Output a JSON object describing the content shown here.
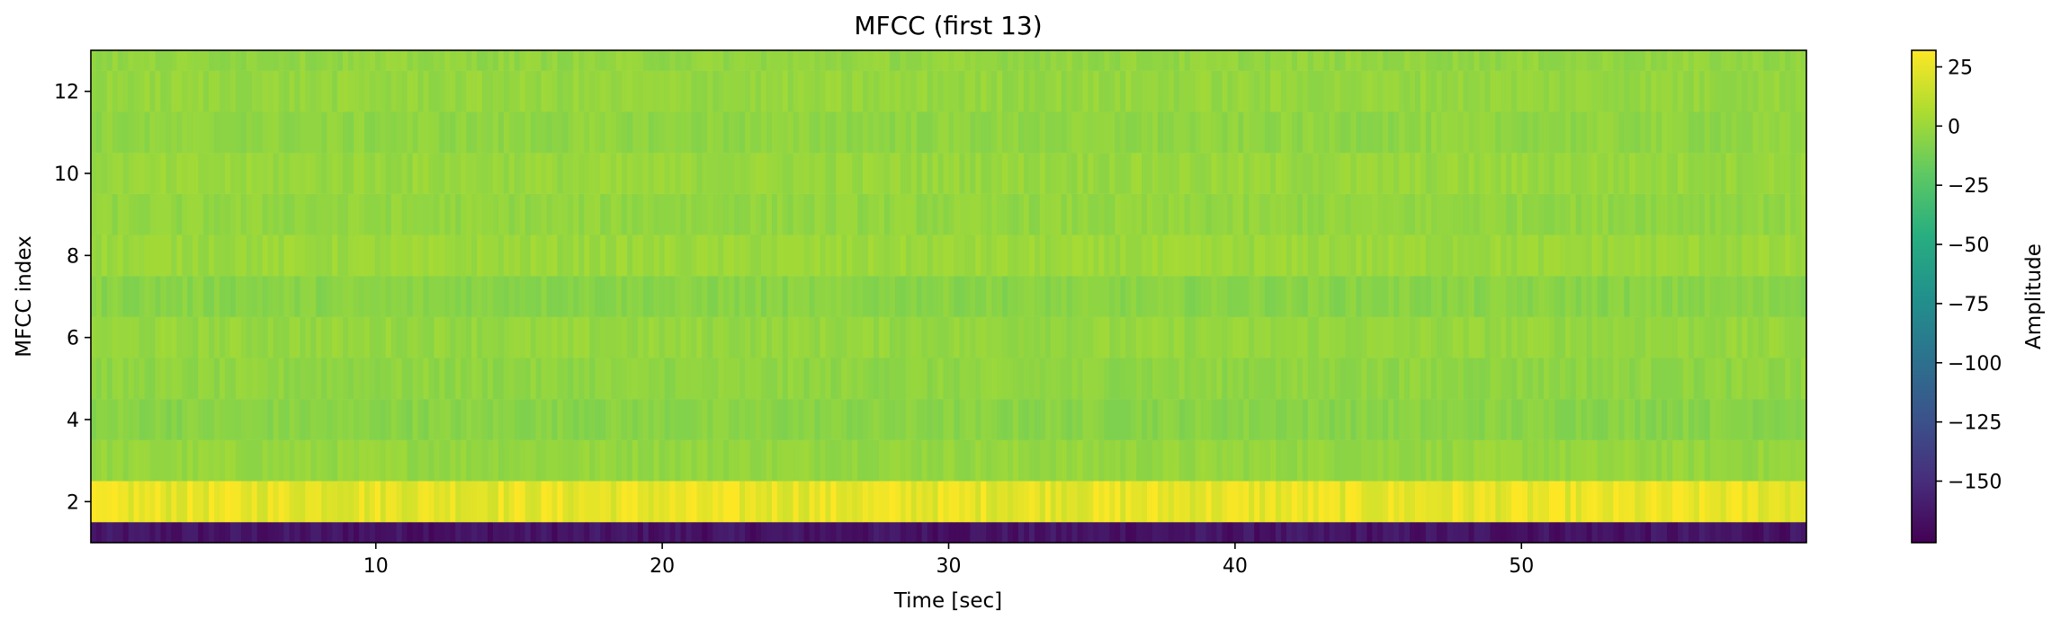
{
  "chart_data": {
    "type": "heatmap",
    "title": "MFCC (first 13)",
    "xlabel": "Time [sec]",
    "ylabel": "MFCC index",
    "xlim": [
      0.05,
      59.95
    ],
    "ylim": [
      1,
      13
    ],
    "x_ticks": [
      10,
      20,
      30,
      40,
      50
    ],
    "y_ticks": [
      2,
      4,
      6,
      8,
      10,
      12
    ],
    "x_tick_labels": [
      "10",
      "20",
      "30",
      "40",
      "50"
    ],
    "y_tick_labels": [
      "2",
      "4",
      "6",
      "8",
      "10",
      "12"
    ],
    "colormap": "viridis",
    "colorbar": {
      "label": "Amplitude",
      "vmin": -176,
      "vmax": 32,
      "ticks": [
        25,
        0,
        -25,
        -50,
        -75,
        -100,
        -125,
        -150
      ],
      "tick_labels": [
        "25",
        "0",
        "−25",
        "−50",
        "−75",
        "−100",
        "−125",
        "−150"
      ]
    },
    "rows": [
      {
        "index": 1,
        "typical_value": -165
      },
      {
        "index": 2,
        "typical_value": 25
      },
      {
        "index": 3,
        "typical_value": -2
      },
      {
        "index": 4,
        "typical_value": -6
      },
      {
        "index": 5,
        "typical_value": -4
      },
      {
        "index": 6,
        "typical_value": -2
      },
      {
        "index": 7,
        "typical_value": -6
      },
      {
        "index": 8,
        "typical_value": 0
      },
      {
        "index": 9,
        "typical_value": -3
      },
      {
        "index": 10,
        "typical_value": -1
      },
      {
        "index": 11,
        "typical_value": -4
      },
      {
        "index": 12,
        "typical_value": -2
      },
      {
        "index": 13,
        "typical_value": -3
      }
    ]
  }
}
